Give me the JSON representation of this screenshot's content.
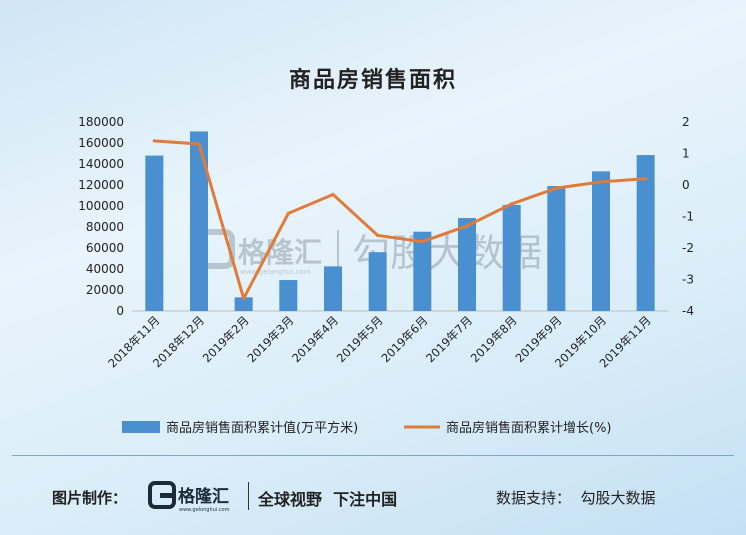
{
  "chart_data": {
    "type": "bar+line",
    "title": "商品房销售面积",
    "categories": [
      "2018年11月",
      "2018年12月",
      "2019年2月",
      "2019年3月",
      "2019年4月",
      "2019年5月",
      "2019年6月",
      "2019年7月",
      "2019年8月",
      "2019年9月",
      "2019年10月",
      "2019年11月"
    ],
    "series": [
      {
        "name": "商品房销售面积累计值(万平方米)",
        "type": "bar",
        "axis": "left",
        "color": "#4a90d0",
        "values": [
          148000,
          171000,
          13000,
          29500,
          42500,
          56000,
          75500,
          88500,
          101000,
          119000,
          133000,
          148500
        ]
      },
      {
        "name": "商品房销售面积累计增长(%)",
        "type": "line",
        "axis": "right",
        "color": "#e07b39",
        "values": [
          1.4,
          1.3,
          -3.6,
          -0.9,
          -0.3,
          -1.6,
          -1.8,
          -1.3,
          -0.6,
          -0.1,
          0.1,
          0.2
        ]
      }
    ],
    "y_left": {
      "min": 0,
      "max": 180000,
      "step": 20000
    },
    "y_right": {
      "min": -4,
      "max": 2,
      "step": 1
    },
    "grid": false,
    "legend_position": "bottom"
  },
  "watermark": {
    "brand": "格隆汇",
    "site": "www.gelonghui.com",
    "text": "勾股大数据"
  },
  "footer": {
    "made_by_label": "图片制作：",
    "logo_text": "格隆汇",
    "logo_url_text": "www.gelonghui.com",
    "slogan": "全球视野  下注中国",
    "data_support": "数据支持：  勾股大数据"
  }
}
